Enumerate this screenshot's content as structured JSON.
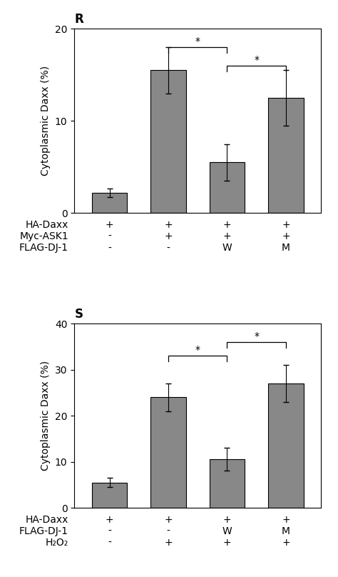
{
  "chart_data": [
    {
      "type": "bar",
      "title": "R",
      "categories": [
        "+\n-\n-",
        "+\n+\n-",
        "+\n+\nW",
        "+\n+\nM"
      ],
      "row_labels": [
        "HA-Daxx",
        "Myc-ASK1",
        "FLAG-DJ-1"
      ],
      "values": [
        2.2,
        15.5,
        5.5,
        12.5
      ],
      "errors": [
        0.5,
        2.5,
        2.0,
        3.0
      ],
      "color": "#888888",
      "ylabel": "Cytoplasmic Daxx (%)",
      "ylim": [
        0,
        20
      ],
      "yticks": [
        0,
        10,
        20
      ],
      "significance": [
        {
          "from": 1,
          "to": 2,
          "y": 18.0,
          "label": "*"
        },
        {
          "from": 2,
          "to": 3,
          "y": 16.0,
          "label": "*"
        }
      ]
    },
    {
      "type": "bar",
      "title": "S",
      "categories": [
        "+\n-\n-",
        "+\n-\n+",
        "+\nW\n+",
        "+\nM\n+"
      ],
      "row_labels": [
        "HA-Daxx",
        "FLAG-DJ-1",
        "H₂O₂"
      ],
      "values": [
        5.5,
        24.0,
        10.5,
        27.0
      ],
      "errors": [
        1.0,
        3.0,
        2.5,
        4.0
      ],
      "color": "#888888",
      "ylabel": "Cytoplasmic Daxx (%)",
      "ylim": [
        0,
        40
      ],
      "yticks": [
        0,
        10,
        20,
        30,
        40
      ],
      "significance": [
        {
          "from": 1,
          "to": 2,
          "y": 33.0,
          "label": "*"
        },
        {
          "from": 2,
          "to": 3,
          "y": 36.0,
          "label": "*"
        }
      ]
    }
  ]
}
